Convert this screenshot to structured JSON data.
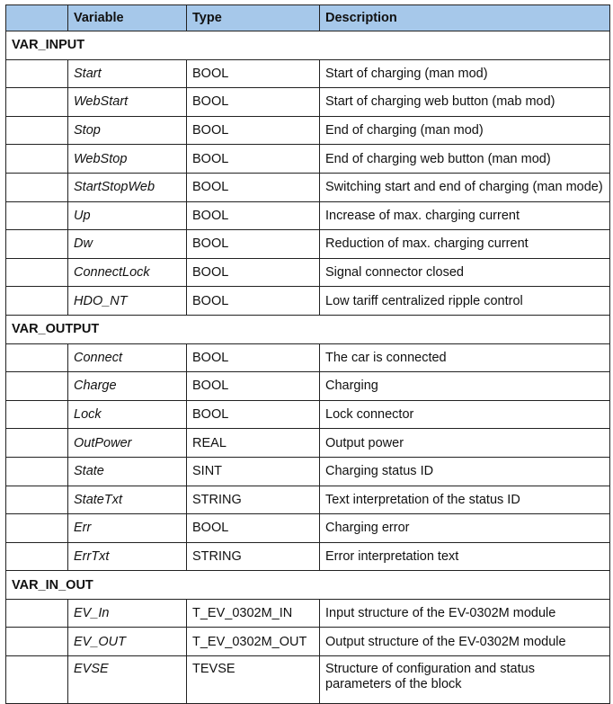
{
  "header": {
    "variable": "Variable",
    "type": "Type",
    "description": "Description"
  },
  "sections": [
    {
      "name": "VAR_INPUT",
      "rows": [
        {
          "variable": "Start",
          "type": "BOOL",
          "description": "Start of charging (man mod)"
        },
        {
          "variable": "WebStart",
          "type": "BOOL",
          "description": "Start of charging web button (mab mod)"
        },
        {
          "variable": "Stop",
          "type": "BOOL",
          "description": "End of charging (man mod)"
        },
        {
          "variable": "WebStop",
          "type": "BOOL",
          "description": "End of charging web button (man mod)"
        },
        {
          "variable": "StartStopWeb",
          "type": "BOOL",
          "description": "Switching start and end of charging (man mode)"
        },
        {
          "variable": "Up",
          "type": "BOOL",
          "description": "Increase of max. charging current"
        },
        {
          "variable": "Dw",
          "type": "BOOL",
          "description": "Reduction of max. charging current"
        },
        {
          "variable": "ConnectLock",
          "type": "BOOL",
          "description": "Signal connector closed"
        },
        {
          "variable": "HDO_NT",
          "type": "BOOL",
          "description": "Low tariff centralized ripple control"
        }
      ]
    },
    {
      "name": "VAR_OUTPUT",
      "rows": [
        {
          "variable": "Connect",
          "type": "BOOL",
          "description": "The car is connected"
        },
        {
          "variable": "Charge",
          "type": "BOOL",
          "description": "Charging"
        },
        {
          "variable": "Lock",
          "type": "BOOL",
          "description": "Lock connector"
        },
        {
          "variable": "OutPower",
          "type": "REAL",
          "description": "Output power"
        },
        {
          "variable": "State",
          "type": "SINT",
          "description": "Charging status ID"
        },
        {
          "variable": "StateTxt",
          "type": "STRING",
          "description": "Text interpretation of the status ID"
        },
        {
          "variable": "Err",
          "type": "BOOL",
          "description": "Charging error"
        },
        {
          "variable": "ErrTxt",
          "type": "STRING",
          "description": "Error interpretation text"
        }
      ]
    },
    {
      "name": "VAR_IN_OUT",
      "rows": [
        {
          "variable": "EV_In",
          "type": "T_EV_0302M_IN",
          "description": "Input structure of the EV-0302M module"
        },
        {
          "variable": "EV_OUT",
          "type": "T_EV_0302M_OUT",
          "description": "Output structure of the EV-0302M module"
        },
        {
          "variable": "EVSE",
          "type": "TEVSE",
          "description": "Structure of configuration and status parameters of the block"
        }
      ]
    }
  ]
}
